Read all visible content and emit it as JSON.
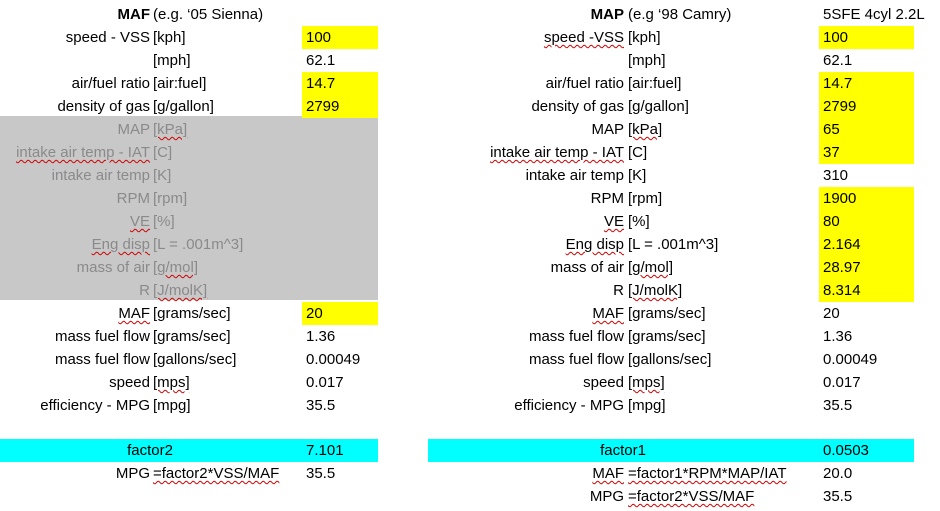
{
  "left": {
    "header": {
      "title": "MAF",
      "subtitle": "(e.g. ‘05 Sienna)"
    },
    "rows": [
      {
        "label": "speed - VSS",
        "unit": "[kph]",
        "value": "100"
      },
      {
        "label": "",
        "unit": "[mph]",
        "value": "62.1"
      },
      {
        "label": "air/fuel ratio",
        "unit": "[air:fuel]",
        "value": "14.7"
      },
      {
        "label": "density of gas",
        "unit": "[g/gallon]",
        "value": "2799"
      },
      {
        "label": "MAP",
        "unit": "[kPa]",
        "value": ""
      },
      {
        "label": "intake air temp - IAT",
        "unit": "[C]",
        "value": ""
      },
      {
        "label": "intake air temp",
        "unit": "[K]",
        "value": ""
      },
      {
        "label": "RPM",
        "unit": "[rpm]",
        "value": ""
      },
      {
        "label": "VE",
        "unit": "[%]",
        "value": ""
      },
      {
        "label": "Eng disp",
        "unit": "[L = .001m^3]",
        "value": ""
      },
      {
        "label": "mass of air",
        "unit": "[g/mol]",
        "value": ""
      },
      {
        "label": "R",
        "unit": "[J/molK]",
        "value": ""
      },
      {
        "label": "MAF",
        "unit": "[grams/sec]",
        "value": "20"
      },
      {
        "label": "mass fuel flow",
        "unit": "[grams/sec]",
        "value": "1.36"
      },
      {
        "label": "mass fuel flow",
        "unit": "[gallons/sec]",
        "value": "0.00049"
      },
      {
        "label": "speed",
        "unit": "[mps]",
        "value": "0.017"
      },
      {
        "label": "efficiency - MPG",
        "unit": "[mpg]",
        "value": "35.5"
      }
    ],
    "factor": {
      "label": "factor2",
      "value": "7.101"
    },
    "formula": {
      "label": "MPG",
      "expr": "=factor2*VSS/MAF",
      "value": "35.5"
    }
  },
  "right": {
    "header": {
      "title": "MAP",
      "subtitle": "(e.g ‘98 Camry)",
      "note": "5SFE 4cyl 2.2L"
    },
    "rows": [
      {
        "label": "speed -VSS",
        "unit": "[kph]",
        "value": "100"
      },
      {
        "label": "",
        "unit": "[mph]",
        "value": "62.1"
      },
      {
        "label": "air/fuel ratio",
        "unit": "[air:fuel]",
        "value": "14.7"
      },
      {
        "label": "density of gas",
        "unit": "[g/gallon]",
        "value": "2799"
      },
      {
        "label": "MAP",
        "unit": "[kPa]",
        "value": "65"
      },
      {
        "label": "intake air temp - IAT",
        "unit": "[C]",
        "value": "37"
      },
      {
        "label": "intake air temp",
        "unit": "[K]",
        "value": "310"
      },
      {
        "label": "RPM",
        "unit": "[rpm]",
        "value": "1900"
      },
      {
        "label": "VE",
        "unit": "[%]",
        "value": "80"
      },
      {
        "label": "Eng disp",
        "unit": "[L = .001m^3]",
        "value": "2.164"
      },
      {
        "label": "mass of air",
        "unit": "[g/mol]",
        "value": "28.97"
      },
      {
        "label": "R",
        "unit": "[J/molK]",
        "value": "8.314"
      },
      {
        "label": "MAF",
        "unit": "[grams/sec]",
        "value": "20"
      },
      {
        "label": "mass fuel flow",
        "unit": "[grams/sec]",
        "value": "1.36"
      },
      {
        "label": "mass fuel flow",
        "unit": "[gallons/sec]",
        "value": "0.00049"
      },
      {
        "label": "speed",
        "unit": "[mps]",
        "value": "0.017"
      },
      {
        "label": "efficiency - MPG",
        "unit": "[mpg]",
        "value": "35.5"
      }
    ],
    "factor": {
      "label": "factor1",
      "value": "0.0503"
    },
    "formulas": [
      {
        "label": "MAF",
        "expr": "=factor1*RPM*MAP/IAT",
        "value": "20.0"
      },
      {
        "label": "MPG",
        "expr": "=factor2*VSS/MAF",
        "value": "35.5"
      }
    ]
  },
  "colors": {
    "input_highlight": "#ffff00",
    "factor_highlight": "#00ffff",
    "disabled_block": "#c8c8c8"
  }
}
